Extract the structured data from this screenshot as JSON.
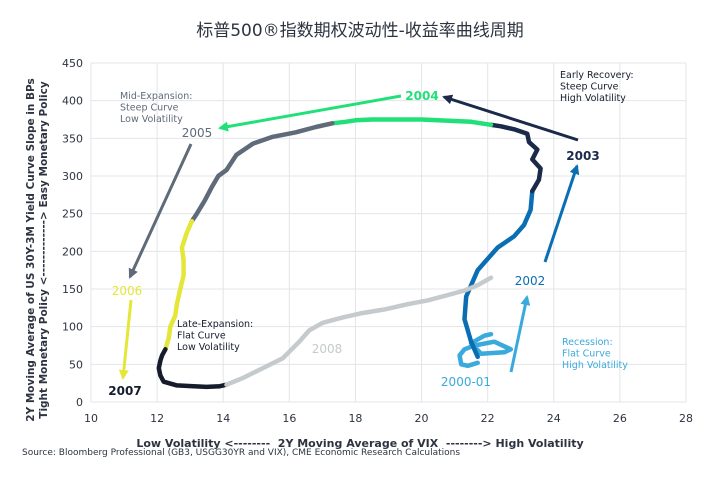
{
  "chart_data": {
    "type": "line",
    "title": "标普500®指数期权波动性-收益率曲线周期",
    "xlabel": "Low Volatility <--------  2Y Moving Average of VIX  --------> High Volatility",
    "ylabel_line1": "2Y Moving Average of US 30Y-3M Yield Curve Slope in BPs",
    "ylabel_line2": "Tight Monetary Policy <-------------> Easy Monetary Policy",
    "xlim": [
      10,
      28
    ],
    "ylim": [
      0,
      450
    ],
    "xticks": [
      10,
      12,
      14,
      16,
      18,
      20,
      22,
      24,
      26,
      28
    ],
    "yticks": [
      0,
      50,
      100,
      150,
      200,
      250,
      300,
      350,
      400,
      450
    ],
    "grid": true,
    "series": [
      {
        "name": "2000-01",
        "color": "#3aaadc",
        "x": [
          21.7,
          21.4,
          21.2,
          21.15,
          21.3,
          21.6,
          22.2,
          22.7,
          22.5,
          21.8,
          21.5,
          21.9,
          22.1
        ],
        "y": [
          52,
          48,
          50,
          62,
          70,
          75,
          80,
          70,
          66,
          64,
          78,
          88,
          90
        ]
      },
      {
        "name": "2002",
        "color": "#0b6eb3",
        "x": [
          21.7,
          21.5,
          21.3,
          21.35,
          21.7,
          22.3,
          22.8,
          23.1,
          23.3,
          23.35
        ],
        "y": [
          60,
          80,
          110,
          140,
          175,
          205,
          220,
          235,
          255,
          280
        ]
      },
      {
        "name": "2003",
        "color": "#1b2a4a",
        "x": [
          23.35,
          23.55,
          23.6,
          23.35,
          23.5,
          23.25,
          23.2,
          22.8,
          22.4,
          22.1
        ],
        "y": [
          280,
          295,
          310,
          322,
          335,
          345,
          356,
          362,
          366,
          368
        ]
      },
      {
        "name": "2004",
        "color": "#22e079",
        "x": [
          22.1,
          21.5,
          21.0,
          20.5,
          20.0,
          19.5,
          19.0,
          18.5,
          18.0,
          17.7,
          17.3
        ],
        "y": [
          368,
          372,
          373,
          374,
          375,
          375,
          375,
          375,
          374,
          372,
          370
        ]
      },
      {
        "name": "2005",
        "color": "#5f6b79",
        "x": [
          17.3,
          16.8,
          16.2,
          15.5,
          14.9,
          14.4,
          14.1,
          13.85,
          13.65,
          13.45,
          13.2,
          13.05
        ],
        "y": [
          370,
          365,
          358,
          352,
          343,
          328,
          308,
          300,
          285,
          268,
          250,
          240
        ]
      },
      {
        "name": "2006",
        "color": "#e4e63a",
        "x": [
          13.05,
          12.9,
          12.75,
          12.8,
          12.8,
          12.7,
          12.6,
          12.55,
          12.4,
          12.35,
          12.25
        ],
        "y": [
          240,
          225,
          205,
          188,
          168,
          150,
          130,
          115,
          100,
          85,
          70
        ]
      },
      {
        "name": "2007",
        "color": "#161c2c",
        "x": [
          12.25,
          12.15,
          12.1,
          12.05,
          12.1,
          12.2,
          12.6,
          13.1,
          13.5,
          13.9,
          14.1
        ],
        "y": [
          70,
          62,
          55,
          45,
          35,
          27,
          22,
          21,
          20,
          21,
          23
        ]
      },
      {
        "name": "2008",
        "color": "#c5cacd",
        "x": [
          14.1,
          14.6,
          15.2,
          15.8,
          16.3,
          16.6,
          17.0,
          17.6,
          18.2,
          18.9,
          19.6,
          20.2,
          20.8,
          21.3,
          21.7,
          22.1
        ],
        "y": [
          23,
          32,
          45,
          58,
          80,
          95,
          105,
          112,
          118,
          123,
          130,
          135,
          142,
          148,
          155,
          165
        ]
      }
    ],
    "annotations": {
      "mid_expansion": [
        "Mid-Expansion:",
        "Steep Curve",
        "Low Volatility"
      ],
      "early_recovery": [
        "Early Recovery:",
        "Steep Curve",
        "High Volatility"
      ],
      "late_expansion": [
        "Late-Expansion:",
        "Flat Curve",
        "Low Volatility"
      ],
      "recession": [
        "Recession:",
        "Flat Curve",
        "High Volatility"
      ]
    },
    "source": "Source: Bloomberg Professional (GB3, USGG30YR and VIX), CME Economic Research Calculations"
  }
}
